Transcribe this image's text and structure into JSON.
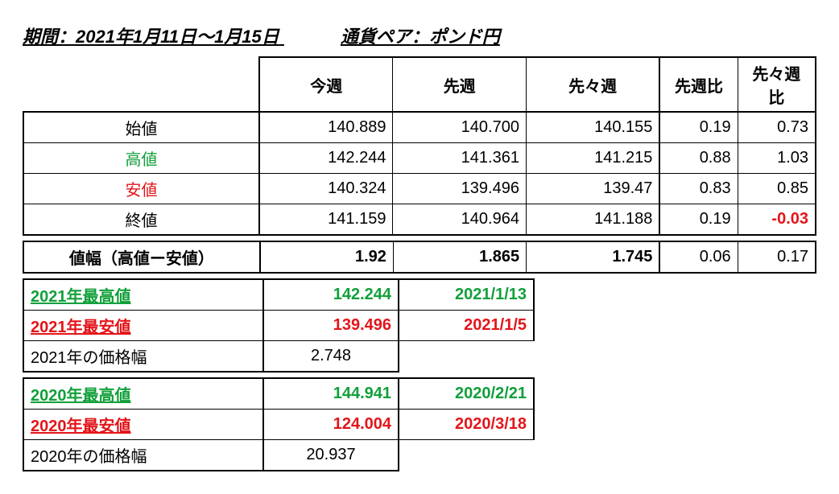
{
  "header": {
    "period_label": "期間：2021年1月11日～1月15日",
    "pair_label": "通貨ペア：ポンド円"
  },
  "main": {
    "cols": {
      "this": "今週",
      "prev": "先週",
      "prev2": "先々週",
      "d1": "先週比",
      "d2": "先々週比"
    },
    "rows": {
      "open": {
        "label": "始値",
        "this": "140.889",
        "prev": "140.700",
        "prev2": "140.155",
        "d1": "0.19",
        "d2": "0.73"
      },
      "high": {
        "label": "高値",
        "this": "142.244",
        "prev": "141.361",
        "prev2": "141.215",
        "d1": "0.88",
        "d2": "1.03"
      },
      "low": {
        "label": "安値",
        "this": "140.324",
        "prev": "139.496",
        "prev2": "139.47",
        "d1": "0.83",
        "d2": "0.85"
      },
      "close": {
        "label": "終値",
        "this": "141.159",
        "prev": "140.964",
        "prev2": "141.188",
        "d1": "0.19",
        "d2": "-0.03"
      },
      "range": {
        "label": "値幅（高値ー安値）",
        "this": "1.92",
        "prev": "1.865",
        "prev2": "1.745",
        "d1": "0.06",
        "d2": "0.17"
      }
    }
  },
  "y2021": {
    "high": {
      "label": "2021年最高値",
      "value": "142.244",
      "date": "2021/1/13"
    },
    "low": {
      "label": "2021年最安値",
      "value": "139.496",
      "date": "2021/1/5"
    },
    "range": {
      "label": "2021年の価格幅",
      "value": "2.748"
    }
  },
  "y2020": {
    "high": {
      "label": "2020年最高値",
      "value": "144.941",
      "date": "2020/2/21"
    },
    "low": {
      "label": "2020年最安値",
      "value": "124.004",
      "date": "2020/3/18"
    },
    "range": {
      "label": "2020年の価格幅",
      "value": "20.937"
    }
  },
  "colors": {
    "green": "#11a03a",
    "red": "#e3151a",
    "black": "#000000",
    "bg": "#ffffff"
  }
}
